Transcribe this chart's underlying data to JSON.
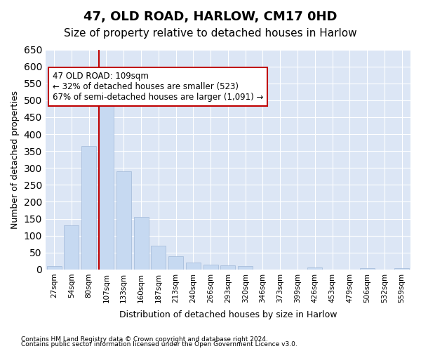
{
  "title": "47, OLD ROAD, HARLOW, CM17 0HD",
  "subtitle": "Size of property relative to detached houses in Harlow",
  "xlabel": "Distribution of detached houses by size in Harlow",
  "ylabel": "Number of detached properties",
  "categories": [
    "27sqm",
    "54sqm",
    "80sqm",
    "107sqm",
    "133sqm",
    "160sqm",
    "187sqm",
    "213sqm",
    "240sqm",
    "266sqm",
    "293sqm",
    "320sqm",
    "346sqm",
    "373sqm",
    "399sqm",
    "426sqm",
    "453sqm",
    "479sqm",
    "506sqm",
    "532sqm",
    "559sqm"
  ],
  "values": [
    10,
    130,
    365,
    535,
    290,
    155,
    70,
    40,
    20,
    15,
    13,
    10,
    0,
    0,
    0,
    5,
    0,
    0,
    3,
    0,
    3
  ],
  "bar_color": "#c6d9f1",
  "bar_edgecolor": "#a0b8d8",
  "highlight_index": 3,
  "highlight_color": "#c00000",
  "ylim": [
    0,
    650
  ],
  "yticks": [
    0,
    50,
    100,
    150,
    200,
    250,
    300,
    350,
    400,
    450,
    500,
    550,
    600,
    650
  ],
  "annotation_title": "47 OLD ROAD: 109sqm",
  "annotation_line1": "← 32% of detached houses are smaller (523)",
  "annotation_line2": "67% of semi-detached houses are larger (1,091) →",
  "footnote1": "Contains HM Land Registry data © Crown copyright and database right 2024.",
  "footnote2": "Contains public sector information licensed under the Open Government Licence v3.0.",
  "background_color": "#ffffff",
  "plot_bg_color": "#dce6f5",
  "grid_color": "#ffffff",
  "title_fontsize": 13,
  "subtitle_fontsize": 11,
  "annotation_box_color": "#ffffff",
  "annotation_box_edgecolor": "#c00000"
}
